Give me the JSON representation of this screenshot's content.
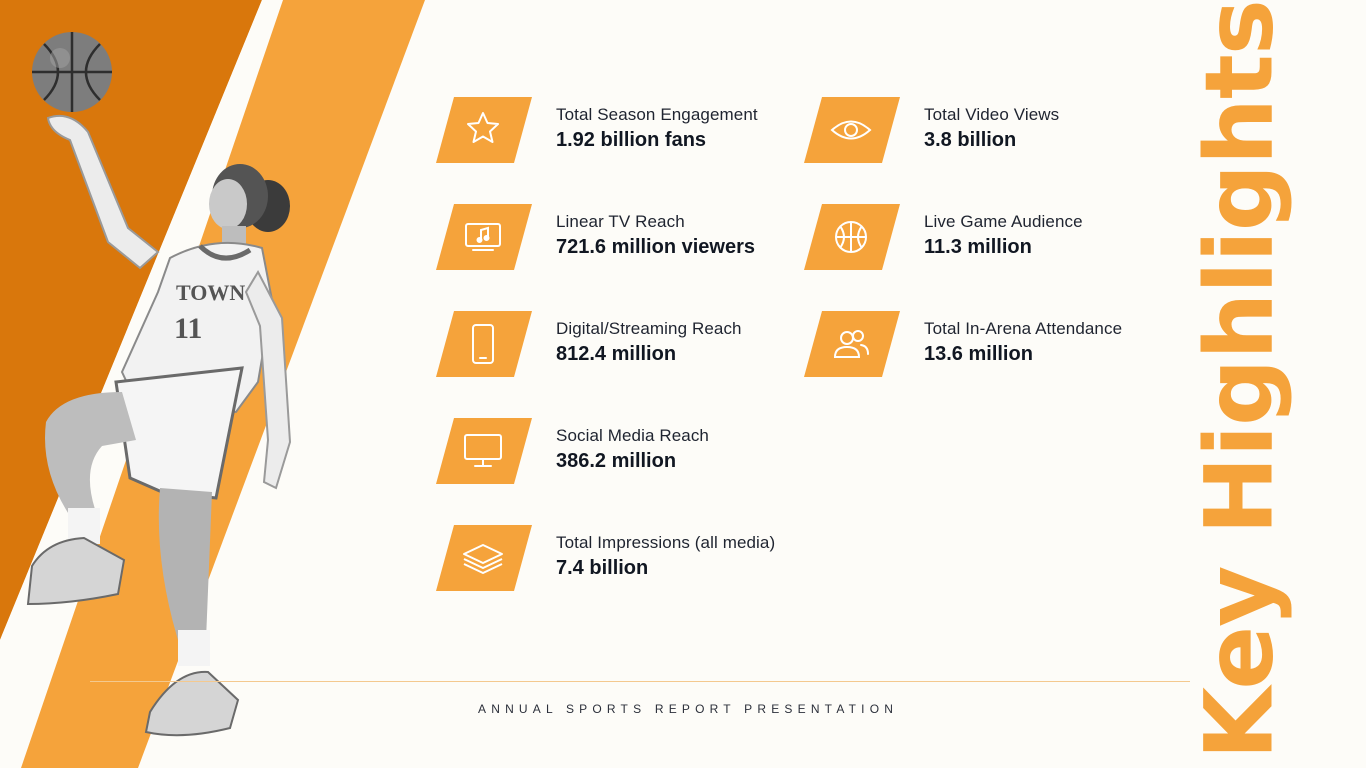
{
  "title": "Key Highlights",
  "footer": "ANNUAL SPORTS REPORT PRESENTATION",
  "colors": {
    "accent": "#f5a33b",
    "accent_dark": "#d9770c",
    "background": "#fdfcf8"
  },
  "highlights": [
    {
      "label": "Total Season Engagement",
      "value": "1.92 billion fans",
      "icon": "star-icon"
    },
    {
      "label": "Linear TV Reach",
      "value": "721.6 million viewers",
      "icon": "tv-music-icon"
    },
    {
      "label": "Digital/Streaming Reach",
      "value": "812.4 million",
      "icon": "smartphone-icon"
    },
    {
      "label": "Social Media Reach",
      "value": "386.2 million",
      "icon": "monitor-icon"
    },
    {
      "label": "Total Impressions (all media)",
      "value": "7.4 billion",
      "icon": "layers-icon"
    },
    {
      "label": "Total Video Views",
      "value": "3.8 billion",
      "icon": "eye-icon"
    },
    {
      "label": "Live Game Audience",
      "value": "11.3 million",
      "icon": "basketball-icon"
    },
    {
      "label": "Total In-Arena Attendance",
      "value": "13.6 million",
      "icon": "users-icon"
    }
  ]
}
